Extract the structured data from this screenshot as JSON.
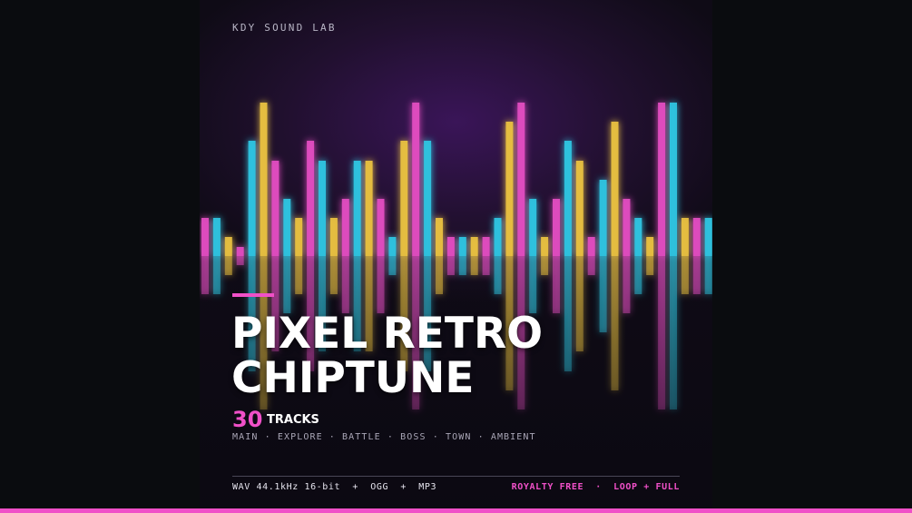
{
  "brand": "KDY SOUND LAB",
  "title": {
    "line1": "PIXEL RETRO",
    "line2": "CHIPTUNE"
  },
  "tracks": {
    "count": "30",
    "label": "TRACKS"
  },
  "genres": "MAIN · EXPLORE · BATTLE · BOSS · TOWN · AMBIENT",
  "footer": {
    "formats": "WAV 44.1kHz 16-bit  +  OGG  +  MP3",
    "license": "ROYALTY FREE  ·  LOOP + FULL"
  }
}
